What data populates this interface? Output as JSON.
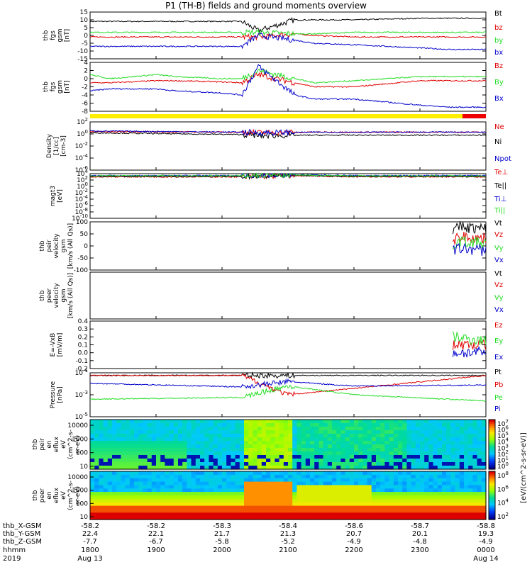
{
  "title": "P1 (TH-B) fields and ground moments overview",
  "colors": {
    "black": "#000000",
    "red": "#e00000",
    "green": "#22dd22",
    "blue": "#0000cc",
    "yellow": "#ffee00",
    "barRed": "#ee0000"
  },
  "chart_data": [
    {
      "type": "line",
      "panel": "fgs-gsm",
      "ylabel_lines": [
        "thb",
        "fgs",
        "gsm",
        "[nT]"
      ],
      "yticks": [
        "15",
        "10",
        "5",
        "0",
        "-5",
        "-10",
        "-15"
      ],
      "ylim": [
        -15,
        15
      ],
      "series": [
        {
          "name": "Bt",
          "color": "#000000",
          "x": [
            1800,
            1830,
            1900,
            1930,
            2000,
            2030,
            2055,
            2110,
            2140,
            2200,
            2300,
            2345,
            2400
          ],
          "y": [
            9,
            9,
            9,
            9,
            9,
            9,
            3,
            10,
            10,
            10,
            11,
            11,
            11
          ]
        },
        {
          "name": "bz",
          "color": "#e00000",
          "x": [
            1800,
            1830,
            1900,
            1930,
            2000,
            2030,
            2055,
            2110,
            2140,
            2200,
            2300,
            2345,
            2400
          ],
          "y": [
            -1,
            -1,
            -1,
            -1,
            -1,
            -1,
            -1,
            1,
            0,
            -1,
            -1,
            -1,
            -1
          ]
        },
        {
          "name": "by",
          "color": "#22dd22",
          "x": [
            1800,
            1830,
            1900,
            1930,
            2000,
            2030,
            2055,
            2110,
            2140,
            2200,
            2300,
            2345,
            2400
          ],
          "y": [
            2,
            2,
            2,
            2,
            2,
            2,
            2,
            1,
            1,
            2,
            2,
            2,
            2
          ]
        },
        {
          "name": "bx",
          "color": "#0000cc",
          "x": [
            1800,
            1830,
            1900,
            1930,
            2000,
            2030,
            2055,
            2110,
            2140,
            2200,
            2300,
            2345,
            2400
          ],
          "y": [
            -7,
            -7,
            -7,
            -7,
            -7,
            -7,
            0,
            -3,
            -5,
            -6,
            -8,
            -9,
            -9
          ]
        }
      ]
    },
    {
      "type": "line",
      "panel": "fgs-gsm-dsl",
      "ylabel_lines": [
        "thb",
        "fgs",
        "gsm",
        "[nT]"
      ],
      "yticks": [
        "4",
        "2",
        "0",
        "-2",
        "-4",
        "-6",
        "-8"
      ],
      "ylim": [
        -8,
        4
      ],
      "series": [
        {
          "name": "Bz",
          "color": "#e00000",
          "x": [
            1800,
            1830,
            1900,
            1930,
            2000,
            2030,
            2055,
            2110,
            2140,
            2200,
            2300,
            2345,
            2400
          ],
          "y": [
            -1,
            -1,
            -0.5,
            -0.5,
            -0.8,
            -1,
            1,
            -1,
            -2,
            -2,
            -0.5,
            -0.5,
            -0.5
          ]
        },
        {
          "name": "By",
          "color": "#22dd22",
          "x": [
            1800,
            1830,
            1900,
            1930,
            2000,
            2030,
            2055,
            2110,
            2140,
            2200,
            2300,
            2345,
            2400
          ],
          "y": [
            1,
            0,
            1,
            0.5,
            0,
            0,
            2,
            0,
            -1,
            -0.5,
            0.5,
            0.5,
            0.5
          ]
        },
        {
          "name": "Bx",
          "color": "#0000cc",
          "x": [
            1800,
            1830,
            1900,
            1930,
            2000,
            2030,
            2055,
            2110,
            2140,
            2200,
            2300,
            2345,
            2400
          ],
          "y": [
            -3,
            -2.5,
            -2.5,
            -3,
            -3.5,
            -4,
            3,
            -4,
            -5,
            -5,
            -6.5,
            -7,
            -7
          ]
        }
      ]
    },
    {
      "type": "line",
      "panel": "density",
      "ylabel_lines": [
        "Density",
        "[1/cc]",
        "[cm-3]"
      ],
      "yticks": [
        "10^2",
        "10^0",
        "10^-2",
        "10^-4",
        "10^-6"
      ],
      "ylim": [
        -6,
        2
      ],
      "series": [
        {
          "name": "Ne",
          "color": "#e00000",
          "x": [
            1800,
            2030,
            2055,
            2140,
            2400
          ],
          "y": [
            0.4,
            0.3,
            0.2,
            0.3,
            0.3
          ]
        },
        {
          "name": "Ni",
          "color": "#000000",
          "x": [
            1800,
            2030,
            2055,
            2140,
            2400
          ],
          "y": [
            0.2,
            -0.1,
            -0.3,
            -0.2,
            -0.2
          ]
        },
        {
          "name": "Npot",
          "color": "#0000cc",
          "x": [
            1800,
            2030,
            2055,
            2140,
            2400
          ],
          "y": [
            0.5,
            0.3,
            0.2,
            0.3,
            0.3
          ]
        }
      ]
    },
    {
      "type": "line",
      "panel": "temperature",
      "ylabel_lines": [
        "magt3",
        "[eV]"
      ],
      "yticks": [
        "10^4",
        "10^2",
        "10^0",
        "10^-2",
        "10^-4",
        "10^-6",
        "10^-8",
        "10^-10"
      ],
      "ylim": [
        -10,
        4
      ],
      "series": [
        {
          "name": "Te⊥",
          "color": "#e00000",
          "x": [
            1800,
            2030,
            2100,
            2200,
            2400
          ],
          "y": [
            3,
            3,
            3.4,
            3,
            3
          ]
        },
        {
          "name": "Te||",
          "color": "#000000",
          "x": [
            1800,
            2030,
            2100,
            2200,
            2400
          ],
          "y": [
            3.1,
            3.1,
            3.5,
            3.1,
            3.1
          ]
        },
        {
          "name": "Ti⊥",
          "color": "#0000cc",
          "x": [
            1800,
            2030,
            2100,
            2200,
            2400
          ],
          "y": [
            3.4,
            3.4,
            3.7,
            3.4,
            3.4
          ]
        },
        {
          "name": "Ti||",
          "color": "#22dd22",
          "x": [
            1800,
            2030,
            2100,
            2200,
            2400
          ],
          "y": [
            3.3,
            3.3,
            3.6,
            3.3,
            3.3
          ]
        }
      ]
    },
    {
      "type": "line",
      "panel": "peir-velocity",
      "ylabel_lines": [
        "thb",
        "peir",
        "velocity",
        "gsm",
        "[km/s (All Qs)]"
      ],
      "yticks": [
        "100",
        "50",
        "0",
        "-50",
        "-100"
      ],
      "ylim": [
        -100,
        100
      ],
      "series": [
        {
          "name": "Vt",
          "color": "#000000",
          "x": [
            2350,
            2360,
            2400
          ],
          "y": [
            60,
            80,
            70
          ]
        },
        {
          "name": "Vz",
          "color": "#e00000",
          "x": [
            2350,
            2360,
            2400
          ],
          "y": [
            20,
            40,
            30
          ]
        },
        {
          "name": "Vy",
          "color": "#22dd22",
          "x": [
            2350,
            2360,
            2400
          ],
          "y": [
            0,
            20,
            10
          ]
        },
        {
          "name": "Vx",
          "color": "#0000cc",
          "x": [
            2350,
            2360,
            2400
          ],
          "y": [
            -20,
            -10,
            -20
          ]
        }
      ]
    },
    {
      "type": "line",
      "panel": "peer-velocity",
      "ylabel_lines": [
        "thb",
        "peer",
        "velocity",
        "gsm",
        "[km/s (All Qs)]"
      ],
      "yticks": [],
      "series": [
        {
          "name": "Vt",
          "color": "#000000"
        },
        {
          "name": "Vz",
          "color": "#e00000"
        },
        {
          "name": "Vy",
          "color": "#22dd22"
        },
        {
          "name": "Vx",
          "color": "#0000cc"
        }
      ]
    },
    {
      "type": "line",
      "panel": "efield",
      "ylabel_lines": [
        "E=-VxB",
        "[mV/m]"
      ],
      "yticks": [
        "0.4",
        "0.3",
        "0.2",
        "0.1",
        "0.0",
        "-0.1",
        "-0.2"
      ],
      "ylim": [
        -0.2,
        0.4
      ],
      "series": [
        {
          "name": "Ez",
          "color": "#e00000",
          "x": [
            2350,
            2400
          ],
          "y": [
            0.1,
            0.1
          ]
        },
        {
          "name": "Ey",
          "color": "#22dd22",
          "x": [
            2350,
            2400
          ],
          "y": [
            0.2,
            0.15
          ]
        },
        {
          "name": "Ex",
          "color": "#0000cc",
          "x": [
            2350,
            2400
          ],
          "y": [
            0.0,
            0.0
          ]
        }
      ]
    },
    {
      "type": "line",
      "panel": "pressure",
      "ylabel_lines": [
        "Pressure",
        "[nPa]"
      ],
      "yticks": [
        "10^-1",
        "10^-3",
        "10^-5"
      ],
      "ylim": [
        -6,
        -1
      ],
      "series": [
        {
          "name": "Pt",
          "color": "#000000",
          "x": [
            1800,
            2400
          ],
          "y": [
            -1.3,
            -1.3
          ]
        },
        {
          "name": "Pb",
          "color": "#e00000",
          "x": [
            1800,
            2030,
            2100,
            2400
          ],
          "y": [
            -1.3,
            -1.3,
            -3.5,
            -1.3
          ]
        },
        {
          "name": "Pe",
          "color": "#22dd22",
          "x": [
            1800,
            2030,
            2100,
            2200,
            2400
          ],
          "y": [
            -4,
            -3.8,
            -2.5,
            -3.5,
            -4.2
          ]
        },
        {
          "name": "Pi",
          "color": "#0000cc",
          "x": [
            1800,
            2030,
            2100,
            2200,
            2400
          ],
          "y": [
            -2.2,
            -2.6,
            -2.0,
            -2.5,
            -2.4
          ]
        }
      ]
    },
    {
      "type": "heatmap",
      "panel": "peir-en-eflux",
      "ylabel_lines": [
        "thb",
        "peir",
        "en",
        "eflux",
        "eV",
        "(cm^2-s-",
        "sr-eV)"
      ],
      "yticks": [
        "10000",
        "1000",
        "100",
        "10"
      ],
      "colorbar_ticks": [
        "10^7",
        "10^6",
        "10^5",
        "10^4",
        "10^3",
        "10^2",
        "10^1",
        "10^0"
      ]
    },
    {
      "type": "heatmap",
      "panel": "peer-en-eflux",
      "ylabel_lines": [
        "thb",
        "peer",
        "en",
        "eflux",
        "eV",
        "(cm^2-s-",
        "sr-eV)"
      ],
      "yticks": [
        "10000",
        "1000",
        "100",
        "10"
      ],
      "colorbar_ticks": [
        "10^8",
        "10^6",
        "10^4",
        "10^2"
      ],
      "colorbar_label": "[eV/(cm^2-s-sr-eV)]"
    }
  ],
  "bottom_axis": {
    "rows": [
      {
        "label": "thb_X-GSM",
        "values": [
          "-58.2",
          "-58.2",
          "-58.3",
          "-58.4",
          "-58.6",
          "-58.7",
          "-58.8"
        ]
      },
      {
        "label": "thb_Y-GSM",
        "values": [
          "22.4",
          "22.1",
          "21.7",
          "21.3",
          "20.7",
          "20.1",
          "19.3"
        ]
      },
      {
        "label": "thb_Z-GSM",
        "values": [
          "-7.7",
          "-6.7",
          "-5.8",
          "-5.2",
          "-4.9",
          "-4.8",
          "-4.9"
        ]
      },
      {
        "label": "hhmm",
        "values": [
          "1800",
          "1900",
          "2000",
          "2100",
          "2200",
          "2300",
          "0000"
        ]
      },
      {
        "label": "2019",
        "values": [
          "Aug 13",
          "",
          "",
          "",
          "",
          "",
          "Aug 14"
        ]
      }
    ]
  }
}
